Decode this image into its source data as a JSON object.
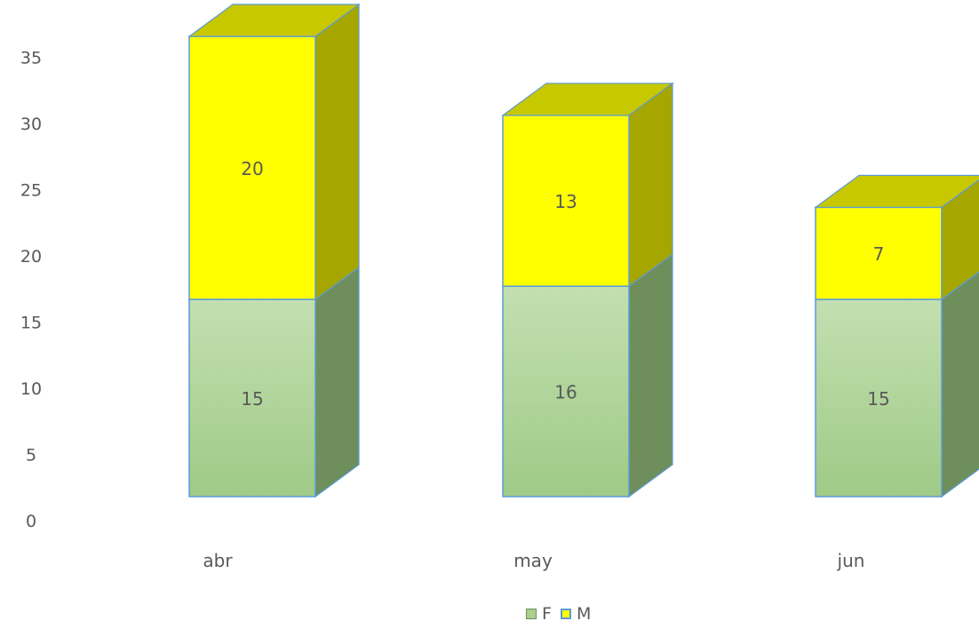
{
  "chart_data": {
    "type": "bar",
    "stacked": true,
    "three_d": true,
    "categories": [
      "abr",
      "may",
      "jun"
    ],
    "series": [
      {
        "name": "F",
        "values": [
          15,
          16,
          15
        ],
        "color": "#a9d08e"
      },
      {
        "name": "M",
        "values": [
          20,
          13,
          7
        ],
        "color": "#ffff00"
      }
    ],
    "y_ticks": [
      "0",
      "5",
      "10",
      "15",
      "20",
      "25",
      "30",
      "35"
    ],
    "ylim": [
      0,
      37
    ],
    "legend_position": "bottom",
    "grid": false
  },
  "colors": {
    "f_front_top": "#c3dfb0",
    "f_front_bottom": "#9fca87",
    "f_side": "#6e8f5c",
    "m_front": "#ffff00",
    "m_side": "#a6a600",
    "m_top": "#c8c800",
    "edge": "#5b9bd5",
    "label": "#595959"
  }
}
